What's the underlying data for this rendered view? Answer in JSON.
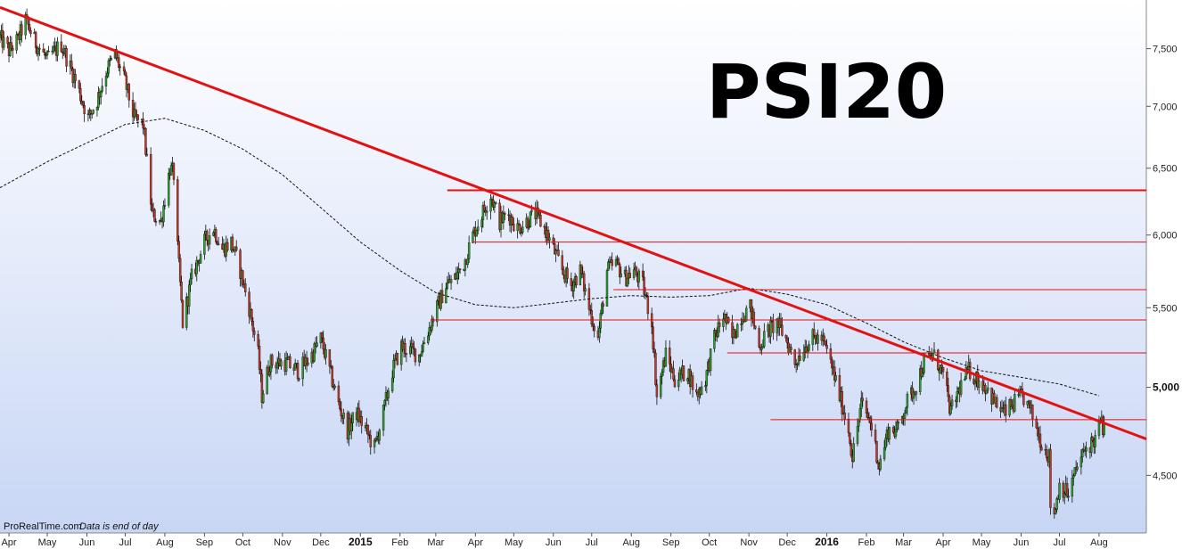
{
  "chart_data": {
    "type": "candlestick",
    "title": "PSI20",
    "footer": {
      "source": "ProRealTime.com",
      "note": "Data is end of day"
    },
    "y_axis": {
      "position": "right",
      "range": [
        4200,
        7950
      ],
      "scale": "log",
      "ticks": [
        {
          "value": 4500,
          "label": "4,500"
        },
        {
          "value": 5000,
          "label": "5,000"
        },
        {
          "value": 5500,
          "label": "5,500"
        },
        {
          "value": 6000,
          "label": "6,000"
        },
        {
          "value": 6500,
          "label": "6,500"
        },
        {
          "value": 7000,
          "label": "7,000"
        },
        {
          "value": 7500,
          "label": "7,500"
        }
      ],
      "bold_ticks": [
        "5,000"
      ]
    },
    "x_axis": {
      "range": [
        "2014-03-25",
        "2016-09-07"
      ],
      "ticks": [
        {
          "date": "2014-04-01",
          "label": "Apr"
        },
        {
          "date": "2014-05-01",
          "label": "May"
        },
        {
          "date": "2014-06-01",
          "label": "Jun"
        },
        {
          "date": "2014-07-01",
          "label": "Jul"
        },
        {
          "date": "2014-08-01",
          "label": "Aug"
        },
        {
          "date": "2014-09-01",
          "label": "Sep"
        },
        {
          "date": "2014-10-01",
          "label": "Oct"
        },
        {
          "date": "2014-11-01",
          "label": "Nov"
        },
        {
          "date": "2014-12-01",
          "label": "Dec"
        },
        {
          "date": "2015-01-01",
          "label": "2015",
          "bold": true
        },
        {
          "date": "2015-02-01",
          "label": "Feb"
        },
        {
          "date": "2015-03-01",
          "label": "Mar"
        },
        {
          "date": "2015-04-01",
          "label": "Apr"
        },
        {
          "date": "2015-05-01",
          "label": "May"
        },
        {
          "date": "2015-06-01",
          "label": "Jun"
        },
        {
          "date": "2015-07-01",
          "label": "Jul"
        },
        {
          "date": "2015-08-01",
          "label": "Aug"
        },
        {
          "date": "2015-09-01",
          "label": "Sep"
        },
        {
          "date": "2015-10-01",
          "label": "Oct"
        },
        {
          "date": "2015-11-01",
          "label": "Nov"
        },
        {
          "date": "2015-12-01",
          "label": "Dec"
        },
        {
          "date": "2016-01-01",
          "label": "2016",
          "bold": true
        },
        {
          "date": "2016-02-01",
          "label": "Feb"
        },
        {
          "date": "2016-03-01",
          "label": "Mar"
        },
        {
          "date": "2016-04-01",
          "label": "Apr"
        },
        {
          "date": "2016-05-01",
          "label": "May"
        },
        {
          "date": "2016-06-01",
          "label": "Jun"
        },
        {
          "date": "2016-07-01",
          "label": "Jul"
        },
        {
          "date": "2016-08-01",
          "label": "Aug"
        }
      ]
    },
    "price_path": [
      [
        "2014-03-25",
        7600
      ],
      [
        "2014-04-01",
        7480
      ],
      [
        "2014-04-08",
        7580
      ],
      [
        "2014-04-14",
        7760
      ],
      [
        "2014-04-22",
        7550
      ],
      [
        "2014-05-01",
        7400
      ],
      [
        "2014-05-12",
        7540
      ],
      [
        "2014-05-22",
        7250
      ],
      [
        "2014-06-02",
        6900
      ],
      [
        "2014-06-09",
        7050
      ],
      [
        "2014-06-16",
        7300
      ],
      [
        "2014-06-23",
        7450
      ],
      [
        "2014-07-01",
        7200
      ],
      [
        "2014-07-08",
        6900
      ],
      [
        "2014-07-15",
        6850
      ],
      [
        "2014-07-22",
        6150
      ],
      [
        "2014-07-29",
        6100
      ],
      [
        "2014-08-05",
        6500
      ],
      [
        "2014-08-08",
        6450
      ],
      [
        "2014-08-11",
        5900
      ],
      [
        "2014-08-15",
        5400
      ],
      [
        "2014-08-22",
        5700
      ],
      [
        "2014-09-01",
        5950
      ],
      [
        "2014-09-08",
        6050
      ],
      [
        "2014-09-15",
        5900
      ],
      [
        "2014-09-22",
        5950
      ],
      [
        "2014-09-29",
        5750
      ],
      [
        "2014-10-06",
        5500
      ],
      [
        "2014-10-13",
        5200
      ],
      [
        "2014-10-16",
        4950
      ],
      [
        "2014-10-22",
        5150
      ],
      [
        "2014-11-03",
        5150
      ],
      [
        "2014-11-14",
        5100
      ],
      [
        "2014-11-24",
        5200
      ],
      [
        "2014-12-01",
        5300
      ],
      [
        "2014-12-08",
        5100
      ],
      [
        "2014-12-15",
        4900
      ],
      [
        "2014-12-22",
        4750
      ],
      [
        "2014-12-29",
        4850
      ],
      [
        "2015-01-05",
        4750
      ],
      [
        "2015-01-12",
        4650
      ],
      [
        "2015-01-19",
        4850
      ],
      [
        "2015-01-26",
        5100
      ],
      [
        "2015-02-02",
        5250
      ],
      [
        "2015-02-16",
        5200
      ],
      [
        "2015-03-02",
        5500
      ],
      [
        "2015-03-09",
        5650
      ],
      [
        "2015-03-16",
        5700
      ],
      [
        "2015-03-23",
        5800
      ],
      [
        "2015-03-30",
        6000
      ],
      [
        "2015-04-06",
        6150
      ],
      [
        "2015-04-13",
        6300
      ],
      [
        "2015-04-20",
        6100
      ],
      [
        "2015-04-27",
        6150
      ],
      [
        "2015-05-04",
        6050
      ],
      [
        "2015-05-18",
        6150
      ],
      [
        "2015-05-25",
        6050
      ],
      [
        "2015-06-01",
        5900
      ],
      [
        "2015-06-08",
        5750
      ],
      [
        "2015-06-15",
        5650
      ],
      [
        "2015-06-22",
        5750
      ],
      [
        "2015-06-29",
        5500
      ],
      [
        "2015-07-06",
        5300
      ],
      [
        "2015-07-13",
        5750
      ],
      [
        "2015-07-20",
        5800
      ],
      [
        "2015-07-27",
        5700
      ],
      [
        "2015-08-03",
        5750
      ],
      [
        "2015-08-10",
        5650
      ],
      [
        "2015-08-17",
        5400
      ],
      [
        "2015-08-21",
        4950
      ],
      [
        "2015-08-28",
        5200
      ],
      [
        "2015-09-04",
        5050
      ],
      [
        "2015-09-14",
        5100
      ],
      [
        "2015-09-21",
        4950
      ],
      [
        "2015-09-28",
        5050
      ],
      [
        "2015-10-05",
        5300
      ],
      [
        "2015-10-12",
        5450
      ],
      [
        "2015-10-19",
        5300
      ],
      [
        "2015-10-26",
        5450
      ],
      [
        "2015-11-02",
        5500
      ],
      [
        "2015-11-09",
        5250
      ],
      [
        "2015-11-16",
        5350
      ],
      [
        "2015-11-23",
        5400
      ],
      [
        "2015-11-30",
        5300
      ],
      [
        "2015-12-07",
        5150
      ],
      [
        "2015-12-14",
        5250
      ],
      [
        "2015-12-21",
        5300
      ],
      [
        "2015-12-28",
        5300
      ],
      [
        "2016-01-04",
        5150
      ],
      [
        "2016-01-11",
        4950
      ],
      [
        "2016-01-18",
        4750
      ],
      [
        "2016-01-21",
        4600
      ],
      [
        "2016-01-28",
        4900
      ],
      [
        "2016-02-04",
        4800
      ],
      [
        "2016-02-11",
        4550
      ],
      [
        "2016-02-18",
        4750
      ],
      [
        "2016-02-25",
        4750
      ],
      [
        "2016-03-03",
        4900
      ],
      [
        "2016-03-10",
        5000
      ],
      [
        "2016-03-17",
        5150
      ],
      [
        "2016-03-24",
        5200
      ],
      [
        "2016-03-31",
        5100
      ],
      [
        "2016-04-07",
        4850
      ],
      [
        "2016-04-14",
        5000
      ],
      [
        "2016-04-21",
        5100
      ],
      [
        "2016-04-28",
        5050
      ],
      [
        "2016-05-05",
        5000
      ],
      [
        "2016-05-12",
        4900
      ],
      [
        "2016-05-19",
        4850
      ],
      [
        "2016-05-26",
        4900
      ],
      [
        "2016-06-02",
        4950
      ],
      [
        "2016-06-09",
        4850
      ],
      [
        "2016-06-16",
        4700
      ],
      [
        "2016-06-23",
        4600
      ],
      [
        "2016-06-24",
        4350
      ],
      [
        "2016-06-27",
        4300
      ],
      [
        "2016-07-01",
        4450
      ],
      [
        "2016-07-08",
        4400
      ],
      [
        "2016-07-15",
        4550
      ],
      [
        "2016-07-22",
        4650
      ],
      [
        "2016-07-29",
        4700
      ],
      [
        "2016-08-02",
        4800
      ],
      [
        "2016-08-05",
        4750
      ]
    ],
    "moving_average": {
      "style": "dashed",
      "color": "#111111",
      "points": [
        [
          "2014-03-25",
          6350
        ],
        [
          "2014-05-01",
          6550
        ],
        [
          "2014-06-01",
          6700
        ],
        [
          "2014-07-01",
          6850
        ],
        [
          "2014-08-01",
          6900
        ],
        [
          "2014-09-01",
          6800
        ],
        [
          "2014-10-01",
          6650
        ],
        [
          "2014-11-01",
          6450
        ],
        [
          "2014-12-01",
          6200
        ],
        [
          "2015-01-01",
          5950
        ],
        [
          "2015-02-01",
          5750
        ],
        [
          "2015-03-01",
          5600
        ],
        [
          "2015-04-01",
          5520
        ],
        [
          "2015-05-01",
          5500
        ],
        [
          "2015-06-01",
          5530
        ],
        [
          "2015-07-01",
          5560
        ],
        [
          "2015-08-01",
          5580
        ],
        [
          "2015-09-01",
          5570
        ],
        [
          "2015-10-01",
          5580
        ],
        [
          "2015-11-01",
          5630
        ],
        [
          "2015-12-01",
          5590
        ],
        [
          "2016-01-01",
          5520
        ],
        [
          "2016-02-01",
          5400
        ],
        [
          "2016-03-01",
          5280
        ],
        [
          "2016-04-01",
          5180
        ],
        [
          "2016-05-01",
          5100
        ],
        [
          "2016-06-01",
          5060
        ],
        [
          "2016-07-01",
          5020
        ],
        [
          "2016-08-01",
          4950
        ]
      ]
    },
    "trendline": {
      "color": "#e31212",
      "start": [
        "2014-03-25",
        7880
      ],
      "end": [
        "2016-09-07",
        4700
      ]
    },
    "horizontal_levels": [
      {
        "value": 6330,
        "from": "2015-03-10",
        "thick": true
      },
      {
        "value": 5950,
        "from": "2015-03-30"
      },
      {
        "value": 5620,
        "from": "2015-07-18"
      },
      {
        "value": 5420,
        "from": "2015-02-25"
      },
      {
        "value": 5210,
        "from": "2015-10-15"
      },
      {
        "value": 4810,
        "from": "2015-11-18"
      }
    ],
    "colors": {
      "up": "#2e9e2e",
      "down": "#c0392b",
      "wick": "#111111",
      "level": "#e31212",
      "bg_top": "#ffffff",
      "bg_bottom": "#c8d6f5"
    }
  }
}
